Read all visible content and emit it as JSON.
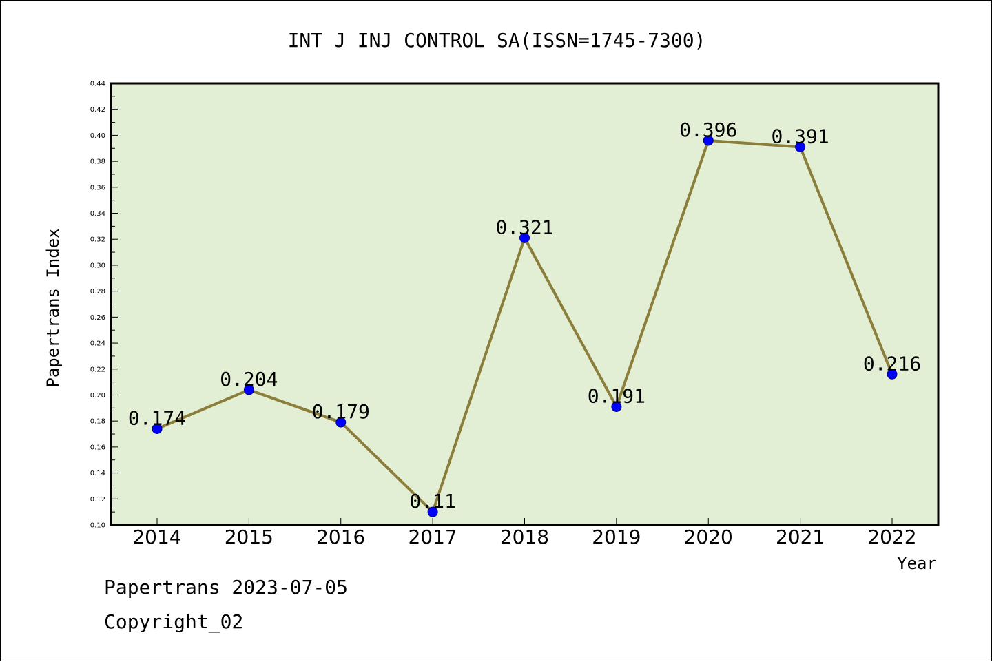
{
  "chart_data": {
    "type": "line",
    "title": "INT J INJ CONTROL SA(ISSN=1745-7300)",
    "xlabel": "Year",
    "ylabel": "Papertrans Index",
    "categories": [
      "2014",
      "2015",
      "2016",
      "2017",
      "2018",
      "2019",
      "2020",
      "2021",
      "2022"
    ],
    "series": [
      {
        "values": [
          0.174,
          0.204,
          0.179,
          0.11,
          0.321,
          0.191,
          0.396,
          0.391,
          0.216
        ],
        "labels": [
          "0.174",
          "0.204",
          "0.179",
          "0.11",
          "0.321",
          "0.191",
          "0.396",
          "0.391",
          "0.216"
        ]
      }
    ],
    "ylim": [
      0.1,
      0.44
    ],
    "yticks": [
      "0.10",
      "0.12",
      "0.14",
      "0.16",
      "0.18",
      "0.20",
      "0.22",
      "0.24",
      "0.26",
      "0.28",
      "0.30",
      "0.32",
      "0.34",
      "0.36",
      "0.38",
      "0.40",
      "0.42",
      "0.44"
    ],
    "grid": false,
    "legend": "none",
    "colors": {
      "plot_background": "#e2efd5",
      "line": "#8b7d3a",
      "marker": "#0000ff"
    }
  },
  "footer": {
    "date_line": "Papertrans 2023-07-05",
    "copyright": "Copyright_02"
  }
}
